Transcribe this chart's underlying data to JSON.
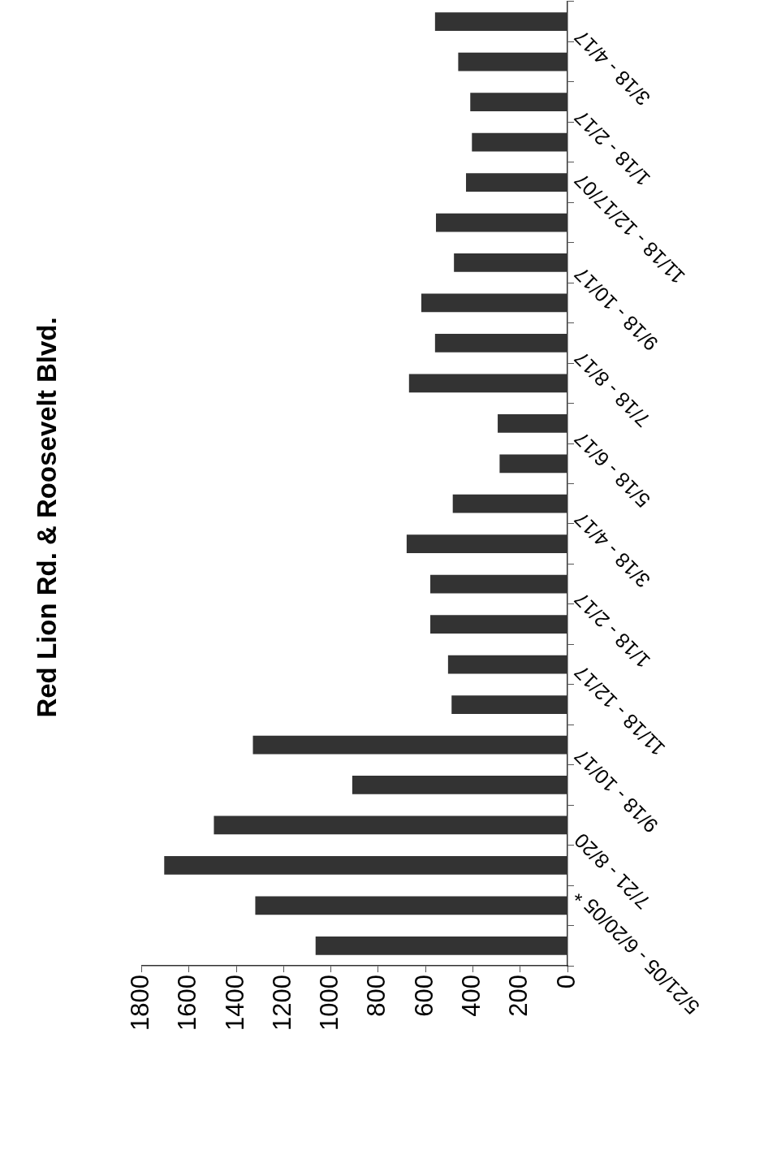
{
  "chart_data": {
    "type": "bar",
    "title": "Red Lion Rd. & Roosevelt Blvd.",
    "orientation": "horizontal",
    "categories": [
      null,
      "3/18 - 4/17",
      null,
      "1/18 - 2/17",
      null,
      "11/18 - 12/17/07",
      null,
      "9/18 - 10/17",
      null,
      "7/18 - 8/17",
      null,
      "5/18 - 6/17",
      null,
      "3/18 - 4/17",
      null,
      "1/18 - 2/17",
      null,
      "11/18 - 12/17",
      null,
      "9/18 - 10/17",
      null,
      "7/21 - 8/20",
      null,
      "5/21/05 - 6/20/05 *"
    ],
    "values": [
      560,
      462,
      411,
      404,
      429,
      556,
      480,
      618,
      560,
      670,
      295,
      287,
      485,
      680,
      580,
      580,
      505,
      490,
      1330,
      910,
      1495,
      1705,
      1320,
      1065
    ],
    "color": "#333333",
    "xlim": [
      1800,
      0
    ],
    "xticks": [
      0,
      200,
      400,
      600,
      800,
      1000,
      1200,
      1400,
      1600,
      1800
    ],
    "grid": false
  }
}
